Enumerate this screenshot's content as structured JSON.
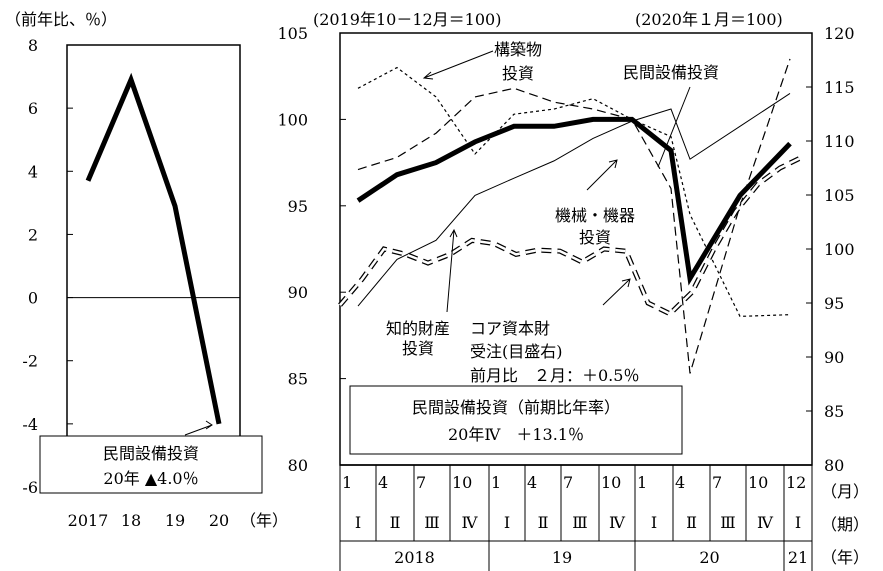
{
  "chart_data": [
    {
      "type": "line",
      "unit_label": "（前年比、％）",
      "x": [
        "2017",
        "18",
        "19",
        "20"
      ],
      "x_unit": "（年）",
      "series": [
        {
          "name": "民間設備投資",
          "values": [
            3.7,
            6.9,
            2.9,
            -4.0
          ]
        }
      ],
      "yticks": [
        "8",
        "6",
        "4",
        "2",
        "0",
        "-2",
        "-4",
        "-6"
      ],
      "ylim": [
        -6,
        8
      ],
      "zero_line": true,
      "annotation_lines": [
        "民間設備投資",
        "20年 ▲4.0％"
      ],
      "grid": false
    },
    {
      "type": "line",
      "left_unit_label": "(2019年10－12月＝100)",
      "right_unit_label": "(2020年１月＝100)",
      "ylim_left": [
        80,
        105
      ],
      "ylim_right": [
        80,
        120
      ],
      "yticks_left": [
        "105",
        "100",
        "95",
        "90",
        "85",
        "80"
      ],
      "yticks_right": [
        "120",
        "115",
        "110",
        "105",
        "100",
        "95",
        "90",
        "85",
        "80"
      ],
      "quarterly_x": {
        "month_labels": [
          "1",
          "4",
          "7",
          "10",
          "1",
          "4",
          "7",
          "10",
          "1",
          "4",
          "7",
          "10",
          "12"
        ],
        "period_labels": [
          "Ⅰ",
          "Ⅱ",
          "Ⅲ",
          "Ⅳ",
          "Ⅰ",
          "Ⅱ",
          "Ⅲ",
          "Ⅳ",
          "Ⅰ",
          "Ⅱ",
          "Ⅲ",
          "Ⅳ",
          "Ⅰ"
        ],
        "year_labels": [
          "2018",
          "19",
          "20",
          "21"
        ],
        "row_units": [
          "（月）",
          "（期）",
          "（年）"
        ]
      },
      "series": [
        {
          "name": "民間設備投資",
          "axis": "left",
          "style": "thick-solid",
          "values": [
            95.3,
            96.8,
            97.5,
            98.7,
            99.6,
            99.6,
            100.0,
            100.0,
            98.2,
            90.8,
            95.6,
            98.6
          ]
        },
        {
          "name": "構築物投資",
          "axis": "left",
          "style": "short-dash",
          "values": [
            101.8,
            103.0,
            101.3,
            98.0,
            100.3,
            100.6,
            101.2,
            100.0,
            99.0,
            94.5,
            88.6,
            88.7
          ]
        },
        {
          "name": "機械・機器投資",
          "axis": "left",
          "style": "long-dash",
          "values": [
            97.1,
            97.8,
            99.2,
            101.3,
            101.8,
            101.0,
            100.6,
            100.0,
            96.0,
            85.3,
            95.0,
            103.5
          ]
        },
        {
          "name": "知的財産投資",
          "axis": "left",
          "style": "thin-solid",
          "values": [
            89.2,
            91.9,
            93.0,
            95.6,
            96.6,
            97.6,
            98.9,
            99.9,
            100.6,
            97.7,
            99.6,
            101.5
          ]
        },
        {
          "name": "コア資本財受注(目盛右)",
          "axis": "right",
          "style": "double-dash",
          "values": [
            94.8,
            97.2,
            100.0,
            99.5,
            98.7,
            99.5,
            100.8,
            100.5,
            99.5,
            99.9,
            99.8,
            98.8,
            100.0,
            99.8,
            95.0,
            94.0,
            96.0,
            100.0,
            103.5,
            106.0,
            107.5,
            108.5
          ]
        }
      ],
      "annotations": [
        {
          "text": "構築物\n投資"
        },
        {
          "text": "民間設備投資"
        },
        {
          "text": "機械・機器\n投資"
        },
        {
          "text": "知的財産\n投資"
        },
        {
          "text": "コア資本財\n受注(目盛右)\n前月比　２月：＋0.5％"
        }
      ],
      "summary_box": [
        "民間設備投資（前期比年率）",
        "20年Ⅳ　＋13.1％"
      ],
      "grid": false
    }
  ]
}
